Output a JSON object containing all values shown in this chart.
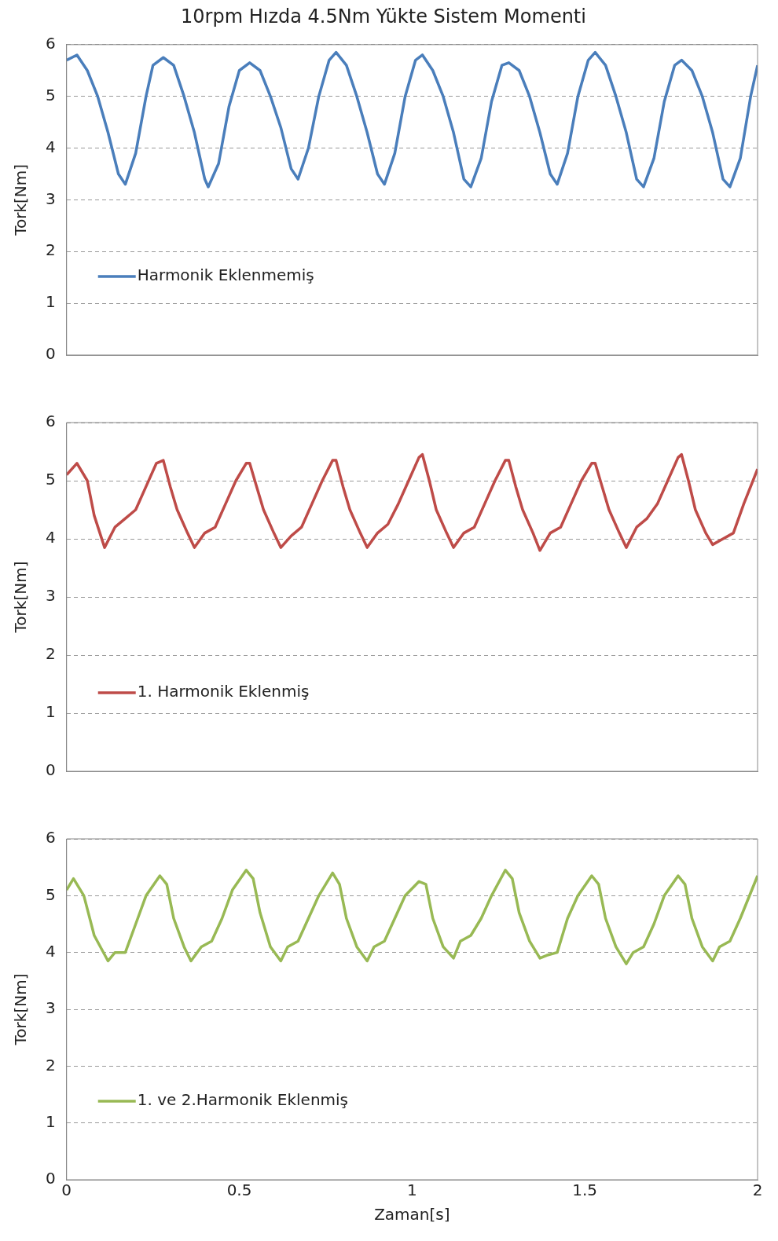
{
  "chart_data": [
    {
      "type": "line",
      "title": "10rpm Hızda 4.5Nm Yükte Sistem Momenti",
      "ylabel": "Tork[Nm]",
      "xlim": [
        0,
        2
      ],
      "xticks": [
        0,
        0.5,
        1,
        1.5,
        2
      ],
      "ylim": [
        0,
        6
      ],
      "yticks": [
        0,
        1,
        2,
        3,
        4,
        5,
        6
      ],
      "grid": "y",
      "legend": "bottom left",
      "tick_labels": "y",
      "series": [
        {
          "name": "Harmonik Eklenmemiş",
          "color": "#4a7ebb",
          "x": [
            0,
            0.03,
            0.06,
            0.09,
            0.12,
            0.15,
            0.17,
            0.2,
            0.23,
            0.25,
            0.28,
            0.31,
            0.34,
            0.37,
            0.4,
            0.41,
            0.44,
            0.47,
            0.5,
            0.53,
            0.56,
            0.59,
            0.62,
            0.65,
            0.67,
            0.7,
            0.73,
            0.76,
            0.78,
            0.81,
            0.84,
            0.87,
            0.9,
            0.92,
            0.95,
            0.98,
            1.01,
            1.03,
            1.06,
            1.09,
            1.12,
            1.15,
            1.17,
            1.2,
            1.23,
            1.26,
            1.28,
            1.31,
            1.34,
            1.37,
            1.4,
            1.42,
            1.45,
            1.48,
            1.51,
            1.53,
            1.56,
            1.59,
            1.62,
            1.65,
            1.67,
            1.7,
            1.73,
            1.76,
            1.78,
            1.81,
            1.84,
            1.87,
            1.9,
            1.92,
            1.95,
            1.98,
            2
          ],
          "values": [
            5.7,
            5.8,
            5.5,
            5.0,
            4.3,
            3.5,
            3.3,
            3.9,
            5.0,
            5.6,
            5.75,
            5.6,
            5.0,
            4.3,
            3.4,
            3.25,
            3.7,
            4.8,
            5.5,
            5.65,
            5.5,
            5.0,
            4.4,
            3.6,
            3.4,
            4.0,
            5.0,
            5.7,
            5.85,
            5.6,
            5.0,
            4.3,
            3.5,
            3.3,
            3.9,
            5.0,
            5.7,
            5.8,
            5.5,
            5.0,
            4.3,
            3.4,
            3.25,
            3.8,
            4.9,
            5.6,
            5.65,
            5.5,
            5.0,
            4.3,
            3.5,
            3.3,
            3.9,
            5.0,
            5.7,
            5.85,
            5.6,
            5.0,
            4.3,
            3.4,
            3.25,
            3.8,
            4.9,
            5.6,
            5.7,
            5.5,
            5.0,
            4.3,
            3.4,
            3.25,
            3.8,
            5.0,
            5.6
          ]
        }
      ]
    },
    {
      "type": "line",
      "ylabel": "Tork[Nm]",
      "xlim": [
        0,
        2
      ],
      "xticks": [
        0,
        0.5,
        1,
        1.5,
        2
      ],
      "ylim": [
        0,
        6
      ],
      "yticks": [
        0,
        1,
        2,
        3,
        4,
        5,
        6
      ],
      "grid": "y",
      "legend": "bottom left",
      "tick_labels": "y",
      "series": [
        {
          "name": "1. Harmonik Eklenmiş",
          "color": "#be4b48",
          "x": [
            0,
            0.03,
            0.06,
            0.08,
            0.11,
            0.14,
            0.17,
            0.2,
            0.23,
            0.26,
            0.28,
            0.3,
            0.32,
            0.35,
            0.37,
            0.4,
            0.43,
            0.46,
            0.49,
            0.52,
            0.53,
            0.55,
            0.57,
            0.6,
            0.62,
            0.65,
            0.68,
            0.71,
            0.74,
            0.77,
            0.78,
            0.8,
            0.82,
            0.85,
            0.87,
            0.9,
            0.93,
            0.96,
            0.99,
            1.02,
            1.03,
            1.05,
            1.07,
            1.1,
            1.12,
            1.15,
            1.18,
            1.21,
            1.24,
            1.27,
            1.28,
            1.3,
            1.32,
            1.35,
            1.37,
            1.4,
            1.43,
            1.46,
            1.49,
            1.52,
            1.53,
            1.55,
            1.57,
            1.6,
            1.62,
            1.65,
            1.68,
            1.71,
            1.74,
            1.77,
            1.78,
            1.8,
            1.82,
            1.85,
            1.87,
            1.9,
            1.93,
            1.96,
            2
          ],
          "values": [
            5.1,
            5.3,
            5.0,
            4.4,
            3.85,
            4.2,
            4.35,
            4.5,
            4.9,
            5.3,
            5.35,
            4.9,
            4.5,
            4.1,
            3.85,
            4.1,
            4.2,
            4.6,
            5.0,
            5.3,
            5.3,
            4.9,
            4.5,
            4.1,
            3.85,
            4.05,
            4.2,
            4.6,
            5.0,
            5.35,
            5.35,
            4.9,
            4.5,
            4.1,
            3.85,
            4.1,
            4.25,
            4.6,
            5.0,
            5.4,
            5.45,
            5.0,
            4.5,
            4.1,
            3.85,
            4.1,
            4.2,
            4.6,
            5.0,
            5.35,
            5.35,
            4.9,
            4.5,
            4.1,
            3.8,
            4.1,
            4.2,
            4.6,
            5.0,
            5.3,
            5.3,
            4.9,
            4.5,
            4.1,
            3.85,
            4.2,
            4.35,
            4.6,
            5.0,
            5.4,
            5.45,
            5.0,
            4.5,
            4.1,
            3.9,
            4.0,
            4.1,
            4.6,
            5.2
          ]
        }
      ]
    },
    {
      "type": "line",
      "ylabel": "Tork[Nm]",
      "xlabel": "Zaman[s]",
      "xlim": [
        0,
        2
      ],
      "xticks": [
        0,
        0.5,
        1,
        1.5,
        2
      ],
      "ylim": [
        0,
        6
      ],
      "yticks": [
        0,
        1,
        2,
        3,
        4,
        5,
        6
      ],
      "grid": "y",
      "legend": "bottom left",
      "series": [
        {
          "name": "1. ve 2.Harmonik Eklenmiş",
          "color": "#98b954",
          "x": [
            0,
            0.02,
            0.05,
            0.08,
            0.12,
            0.14,
            0.17,
            0.2,
            0.23,
            0.27,
            0.29,
            0.31,
            0.34,
            0.36,
            0.39,
            0.42,
            0.45,
            0.48,
            0.52,
            0.54,
            0.56,
            0.59,
            0.62,
            0.64,
            0.67,
            0.7,
            0.73,
            0.77,
            0.79,
            0.81,
            0.84,
            0.87,
            0.89,
            0.92,
            0.95,
            0.98,
            1.02,
            1.04,
            1.06,
            1.09,
            1.12,
            1.14,
            1.17,
            1.2,
            1.23,
            1.27,
            1.29,
            1.31,
            1.34,
            1.37,
            1.39,
            1.42,
            1.45,
            1.48,
            1.52,
            1.54,
            1.56,
            1.59,
            1.62,
            1.64,
            1.67,
            1.7,
            1.73,
            1.77,
            1.79,
            1.81,
            1.84,
            1.87,
            1.89,
            1.92,
            1.95,
            2
          ],
          "values": [
            5.1,
            5.3,
            5.0,
            4.3,
            3.85,
            4.0,
            4.0,
            4.5,
            5.0,
            5.35,
            5.2,
            4.6,
            4.1,
            3.85,
            4.1,
            4.2,
            4.6,
            5.1,
            5.45,
            5.3,
            4.7,
            4.1,
            3.85,
            4.1,
            4.2,
            4.6,
            5.0,
            5.4,
            5.2,
            4.6,
            4.1,
            3.85,
            4.1,
            4.2,
            4.6,
            5.0,
            5.25,
            5.2,
            4.6,
            4.1,
            3.9,
            4.2,
            4.3,
            4.6,
            5.0,
            5.45,
            5.3,
            4.7,
            4.2,
            3.9,
            3.95,
            4.0,
            4.6,
            5.0,
            5.35,
            5.2,
            4.6,
            4.1,
            3.8,
            4.0,
            4.1,
            4.5,
            5.0,
            5.35,
            5.2,
            4.6,
            4.1,
            3.85,
            4.1,
            4.2,
            4.6,
            5.35
          ]
        }
      ]
    }
  ]
}
